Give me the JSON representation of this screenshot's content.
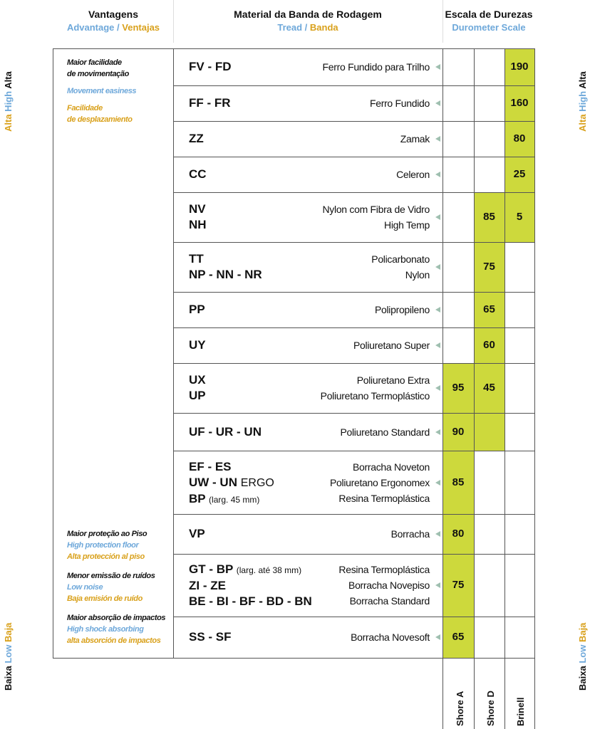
{
  "header": {
    "advantages": {
      "title": "Vantagens",
      "en": "Advantage",
      "separator": "/",
      "es": "Ventajas"
    },
    "tread": {
      "title": "Material da Banda de Rodagem",
      "en": "Tread",
      "separator": "/",
      "es": "Banda"
    },
    "scale": {
      "title": "Escala de Durezas",
      "en": "Durometer Scale"
    }
  },
  "side": {
    "high": {
      "es": "Alta",
      "en": "High",
      "pt": "Alta"
    },
    "low": {
      "pt": "Baixa",
      "en": "Low",
      "es": "Baja"
    }
  },
  "advantages": {
    "top": {
      "pt": [
        "Maior facilidade",
        "de movimentação"
      ],
      "en": [
        "Movement easiness"
      ],
      "es": [
        "Facilidade",
        "de desplazamiento"
      ]
    },
    "bottom": [
      {
        "pt": [
          "Maior proteção ao Piso"
        ],
        "en": [
          "High protection floor"
        ],
        "es": [
          "Alta protección al piso"
        ]
      },
      {
        "pt": [
          "Menor emissão de ruídos"
        ],
        "en": [
          "Low noise"
        ],
        "es": [
          "Baja emisión de ruído"
        ]
      },
      {
        "pt": [
          "Maior absorção de impactos"
        ],
        "en": [
          "High shock absorbing"
        ],
        "es": [
          "alta absorción de impactos"
        ]
      }
    ]
  },
  "columns": [
    "Shore A",
    "Shore D",
    "Brinell"
  ],
  "rows": [
    {
      "codes": [
        {
          "code": "FV - FD"
        }
      ],
      "materials": [
        "Ferro Fundido para Trilho"
      ],
      "brinell": 190
    },
    {
      "codes": [
        {
          "code": "FF - FR"
        }
      ],
      "materials": [
        "Ferro Fundido"
      ],
      "brinell": 160
    },
    {
      "codes": [
        {
          "code": "ZZ"
        }
      ],
      "materials": [
        "Zamak"
      ],
      "brinell": 80
    },
    {
      "codes": [
        {
          "code": "CC"
        }
      ],
      "materials": [
        "Celeron"
      ],
      "brinell": 25
    },
    {
      "codes": [
        {
          "code": "NV"
        },
        {
          "code": "NH"
        }
      ],
      "materials": [
        "Nylon com Fibra de Vidro",
        "High Temp"
      ],
      "shore_d": 85,
      "brinell": 5
    },
    {
      "codes": [
        {
          "code": "TT"
        },
        {
          "code": "NP - NN - NR"
        }
      ],
      "materials": [
        "Policarbonato",
        "Nylon"
      ],
      "shore_d": 75
    },
    {
      "codes": [
        {
          "code": "PP"
        }
      ],
      "materials": [
        "Polipropileno"
      ],
      "shore_d": 65
    },
    {
      "codes": [
        {
          "code": "UY"
        }
      ],
      "materials": [
        "Poliuretano Super"
      ],
      "shore_d": 60
    },
    {
      "codes": [
        {
          "code": "UX"
        },
        {
          "code": "UP"
        }
      ],
      "materials": [
        "Poliuretano Extra",
        "Poliuretano Termoplástico"
      ],
      "shore_a": 95,
      "shore_d": 45
    },
    {
      "codes": [
        {
          "code": "UF - UR - UN"
        }
      ],
      "materials": [
        "Poliuretano Standard"
      ],
      "shore_a": 90
    },
    {
      "codes": [
        {
          "code": "EF - ES"
        },
        {
          "code": "UW - UN",
          "note": "ERGO"
        },
        {
          "code": "BP",
          "note": "(larg. 45 mm)"
        }
      ],
      "materials": [
        "Borracha Noveton",
        "Poliuretano Ergonomex",
        "Resina Termoplástica"
      ],
      "shore_a": 85
    },
    {
      "codes": [
        {
          "code": "VP"
        }
      ],
      "materials": [
        "Borracha"
      ],
      "shore_a": 80
    },
    {
      "codes": [
        {
          "code": "GT - BP",
          "note": "(larg. até 38 mm)"
        },
        {
          "code": "ZI - ZE"
        },
        {
          "code": "BE - BI - BF - BD - BN"
        }
      ],
      "materials": [
        "Resina Termoplástica",
        "Borracha Novepiso",
        "Borracha Standard"
      ],
      "shore_a": 75
    },
    {
      "codes": [
        {
          "code": "SS - SF"
        }
      ],
      "materials": [
        "Borracha Novesoft"
      ],
      "shore_a": 65
    }
  ]
}
